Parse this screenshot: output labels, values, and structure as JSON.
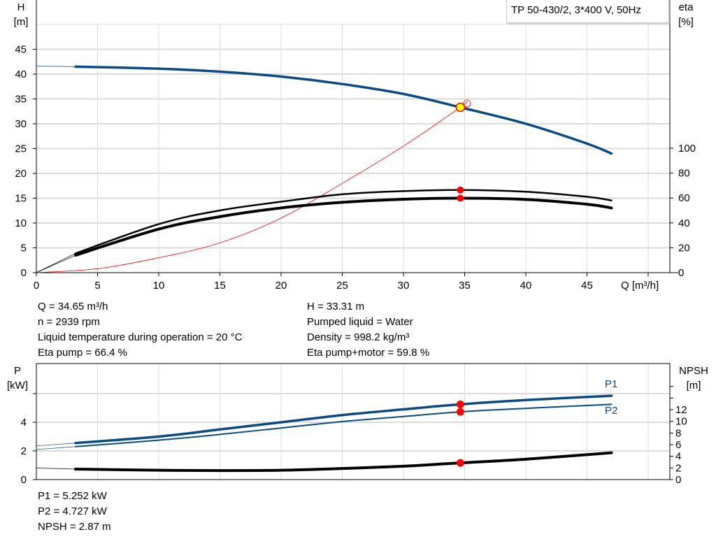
{
  "chart_data": [
    {
      "type": "line",
      "title": "TP 50-430/2, 3*400 V, 50Hz",
      "xlabel": "Q [m³/h]",
      "ylabel": [
        "H",
        "[m]"
      ],
      "y2label": [
        "eta",
        "[%]"
      ],
      "xlim": [
        0,
        50
      ],
      "ylim": [
        0,
        50
      ],
      "y2lim": [
        0,
        100
      ],
      "grid": true,
      "x_ticks": [
        0,
        5,
        10,
        15,
        20,
        25,
        30,
        35,
        40,
        45
      ],
      "y_ticks": [
        0,
        5,
        10,
        15,
        20,
        25,
        30,
        35,
        40,
        45
      ],
      "y2_ticks": [
        0,
        20,
        40,
        60,
        80,
        100
      ],
      "x": [
        3.2,
        10,
        15,
        20,
        25,
        30,
        34.65,
        40,
        45,
        47
      ],
      "series": [
        {
          "id": "H",
          "axis": "left",
          "color": "#0b4a82",
          "start_at_zero": 41.6,
          "values": [
            41.5,
            41.1,
            40.5,
            39.5,
            38.0,
            36.0,
            33.31,
            30.0,
            26.0,
            24.0
          ]
        },
        {
          "id": "eta-pump",
          "axis": "right",
          "color": "#000000",
          "start_at_zero": 0,
          "values": [
            15.5,
            39,
            50,
            57,
            63,
            65.5,
            66.4,
            65,
            61,
            58
          ]
        },
        {
          "id": "eta-pump-motor",
          "axis": "right",
          "color": "#000000",
          "start_at_zero": 0,
          "values": [
            14,
            35,
            45,
            52,
            56.5,
            59,
            59.8,
            58.8,
            55,
            52
          ]
        }
      ],
      "system_curve": {
        "color": "#ff0000",
        "x": [
          0,
          5,
          10,
          15,
          20,
          25,
          30,
          34.65,
          35.2
        ],
        "values": [
          0,
          0.8,
          3,
          6,
          11,
          18,
          25.5,
          33.31,
          34.5
        ]
      },
      "duty_point": {
        "q": 34.65,
        "h": 33.31,
        "eta_pump": 66.4,
        "eta_pump_motor": 59.8,
        "color": "#ffff00"
      }
    },
    {
      "type": "line",
      "xlim": [
        0,
        50
      ],
      "ylabel": [
        "P",
        "[kW]"
      ],
      "y2label": [
        "NPSH",
        "[m]"
      ],
      "ylim": [
        0,
        6
      ],
      "y2lim": [
        0,
        16
      ],
      "grid": true,
      "y_ticks": [
        0,
        2,
        4
      ],
      "y2_ticks": [
        0,
        2,
        4,
        6,
        8,
        10,
        12
      ],
      "x": [
        3.2,
        10,
        15,
        20,
        25,
        30,
        34.65,
        40,
        47
      ],
      "series": [
        {
          "id": "P1",
          "name": "P1",
          "axis": "left",
          "color": "#0b4a82",
          "start_at_zero": 2.35,
          "values": [
            2.55,
            3.0,
            3.5,
            4.0,
            4.5,
            4.9,
            5.252,
            5.55,
            5.85
          ]
        },
        {
          "id": "P2",
          "name": "P2",
          "axis": "left",
          "color": "#0b4a82",
          "start_at_zero": 2.1,
          "values": [
            2.3,
            2.75,
            3.15,
            3.6,
            4.05,
            4.4,
            4.727,
            4.97,
            5.25
          ]
        },
        {
          "id": "NPSH",
          "axis": "right",
          "color": "#000000",
          "start_at_zero": 2.0,
          "values": [
            1.8,
            1.6,
            1.55,
            1.6,
            1.9,
            2.3,
            2.87,
            3.5,
            4.6
          ]
        }
      ],
      "duty_point": {
        "q": 34.65,
        "p1": 5.252,
        "p2": 4.727,
        "npsh": 2.87
      }
    }
  ],
  "info_left": [
    "Q = 34.65 m³/h",
    "n = 2939 rpm",
    "Liquid temperature during operation = 20 °C",
    "Eta pump = 66.4 %"
  ],
  "info_right": [
    "H = 33.31 m",
    "Pumped liquid = Water",
    "Density = 998.2 kg/m³",
    "Eta pump+motor = 59.8 %"
  ],
  "info_bottom": [
    "P1 = 5.252 kW",
    "P2 = 4.727 kW",
    "NPSH = 2.87 m"
  ]
}
